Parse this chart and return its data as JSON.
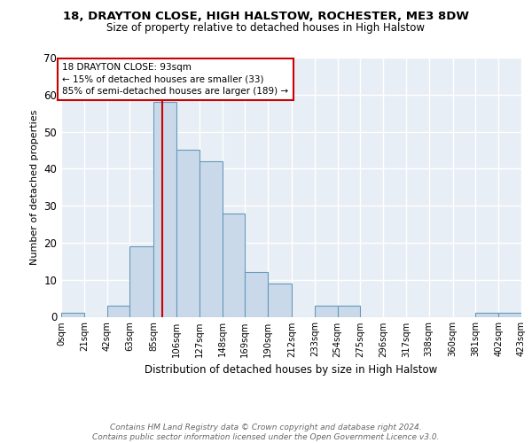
{
  "title1": "18, DRAYTON CLOSE, HIGH HALSTOW, ROCHESTER, ME3 8DW",
  "title2": "Size of property relative to detached houses in High Halstow",
  "xlabel": "Distribution of detached houses by size in High Halstow",
  "ylabel": "Number of detached properties",
  "bin_edges": [
    0,
    21,
    42,
    63,
    85,
    106,
    127,
    148,
    169,
    190,
    212,
    233,
    254,
    275,
    296,
    317,
    338,
    360,
    381,
    402,
    423
  ],
  "bar_heights": [
    1,
    0,
    3,
    19,
    58,
    45,
    42,
    28,
    12,
    9,
    0,
    3,
    3,
    0,
    0,
    0,
    0,
    0,
    1,
    1
  ],
  "bar_color": "#c9d9ea",
  "bar_edgecolor": "#6699bb",
  "vline_x": 93,
  "vline_color": "#cc0000",
  "annotation_text": "18 DRAYTON CLOSE: 93sqm\n← 15% of detached houses are smaller (33)\n85% of semi-detached houses are larger (189) →",
  "annotation_box_color": "white",
  "annotation_box_edgecolor": "#cc0000",
  "ylim": [
    0,
    70
  ],
  "yticks": [
    0,
    10,
    20,
    30,
    40,
    50,
    60,
    70
  ],
  "tick_labels": [
    "0sqm",
    "21sqm",
    "42sqm",
    "63sqm",
    "85sqm",
    "106sqm",
    "127sqm",
    "148sqm",
    "169sqm",
    "190sqm",
    "212sqm",
    "233sqm",
    "254sqm",
    "275sqm",
    "296sqm",
    "317sqm",
    "338sqm",
    "360sqm",
    "381sqm",
    "402sqm",
    "423sqm"
  ],
  "footer": "Contains HM Land Registry data © Crown copyright and database right 2024.\nContains public sector information licensed under the Open Government Licence v3.0.",
  "bg_color": "#e8eef5",
  "grid_color": "#ffffff"
}
